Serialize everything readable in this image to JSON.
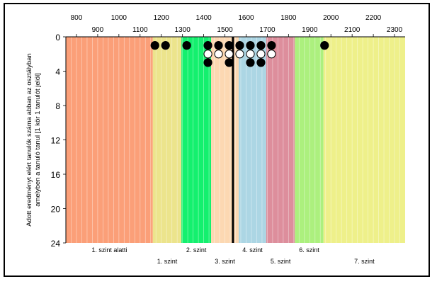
{
  "chart_data": {
    "type": "scatter",
    "title": "",
    "ylabel": "Adott eredményt elért tanulók száma abban az osztályban amelyben a tanuló tanul [1 kör 1 tanulót jelöl]",
    "xlim": [
      750,
      2350
    ],
    "ylim": [
      0,
      24
    ],
    "y_inverted": true,
    "top_ticks_row1": [
      800,
      1000,
      1200,
      1400,
      1600,
      1800,
      2000,
      2200
    ],
    "top_ticks_row2": [
      900,
      1100,
      1300,
      1500,
      1700,
      1900,
      2100,
      2300
    ],
    "y_ticks": [
      0,
      4,
      8,
      12,
      16,
      20,
      24
    ],
    "bands": [
      {
        "label": "1. szint alatti",
        "from": 750,
        "to": 1160,
        "color": "#fb9f78",
        "row": 1
      },
      {
        "label": "1. szint",
        "from": 1160,
        "to": 1295,
        "color": "#ece48c",
        "row": 2
      },
      {
        "label": "2. szint",
        "from": 1295,
        "to": 1435,
        "color": "#14f06e",
        "row": 1
      },
      {
        "label": "3. szint",
        "from": 1435,
        "to": 1565,
        "color": "#fcd8b2",
        "row": 2
      },
      {
        "label": "4. szint",
        "from": 1565,
        "to": 1695,
        "color": "#acd6e4",
        "row": 1
      },
      {
        "label": "5. szint",
        "from": 1695,
        "to": 1830,
        "color": "#dd8e9c",
        "row": 2
      },
      {
        "label": "6. szint",
        "from": 1830,
        "to": 1965,
        "color": "#acf07e",
        "row": 1
      },
      {
        "label": "7. szint",
        "from": 1965,
        "to": 2350,
        "color": "#eef08a",
        "row": 2
      }
    ],
    "reference_line": 1538,
    "series": [
      {
        "style": "filled",
        "points": [
          {
            "x": 1170,
            "y": 1
          },
          {
            "x": 1220,
            "y": 1
          },
          {
            "x": 1320,
            "y": 1
          },
          {
            "x": 1420,
            "y": 1
          },
          {
            "x": 1420,
            "y": 3
          },
          {
            "x": 1470,
            "y": 1
          },
          {
            "x": 1520,
            "y": 1
          },
          {
            "x": 1520,
            "y": 3
          },
          {
            "x": 1570,
            "y": 1
          },
          {
            "x": 1620,
            "y": 1
          },
          {
            "x": 1620,
            "y": 3
          },
          {
            "x": 1670,
            "y": 1
          },
          {
            "x": 1670,
            "y": 3
          },
          {
            "x": 1720,
            "y": 1
          },
          {
            "x": 1970,
            "y": 1
          }
        ]
      },
      {
        "style": "hollow",
        "points": [
          {
            "x": 1420,
            "y": 2
          },
          {
            "x": 1470,
            "y": 2
          },
          {
            "x": 1520,
            "y": 2
          },
          {
            "x": 1570,
            "y": 2
          },
          {
            "x": 1620,
            "y": 2
          },
          {
            "x": 1670,
            "y": 2
          },
          {
            "x": 1720,
            "y": 2
          }
        ]
      }
    ]
  }
}
